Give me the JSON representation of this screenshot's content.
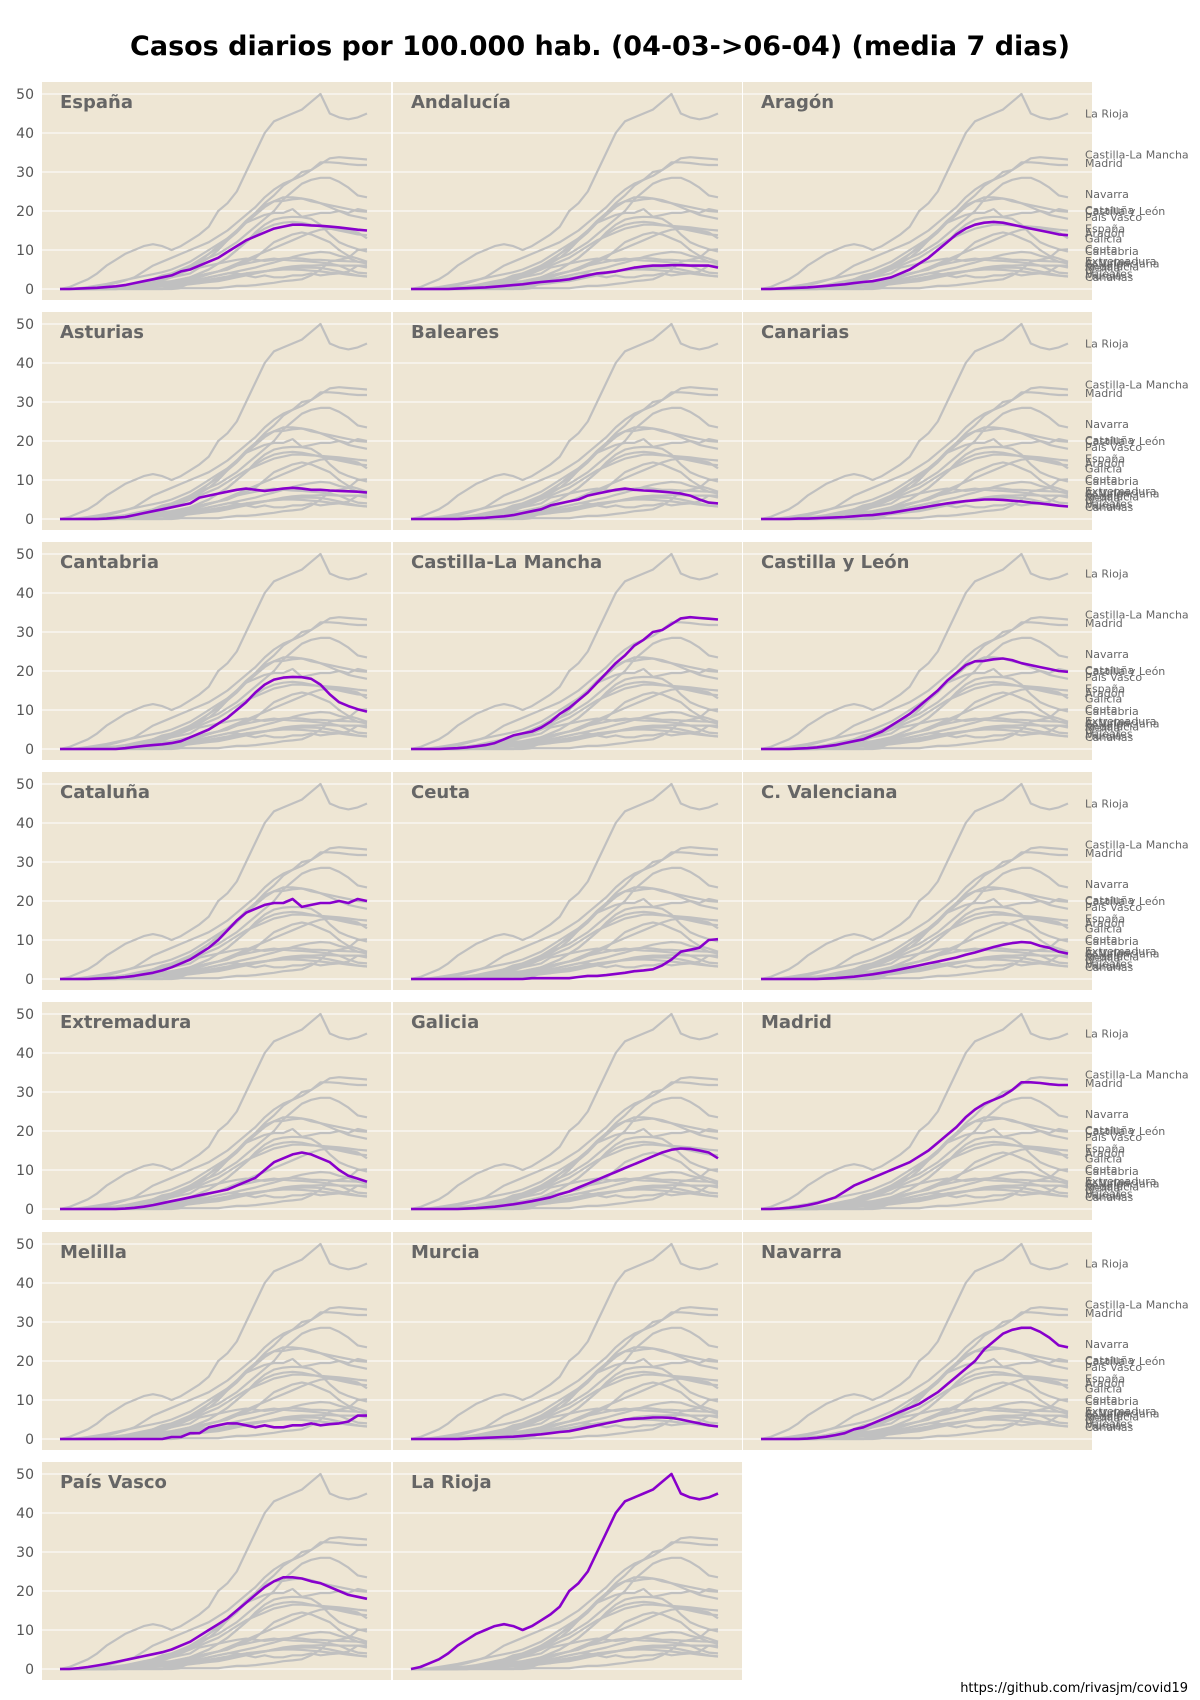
{
  "chart_data": {
    "type": "line",
    "title": "Casos diarios por 100.000 hab. (04-03->06-04) (media 7 dias)",
    "ylim": [
      0,
      50
    ],
    "yticks": [
      0,
      10,
      20,
      30,
      40,
      50
    ],
    "grid": true,
    "colors": {
      "highlight": "#8800cc",
      "background": "#eee6d4",
      "other": "#c0c0c0",
      "label": "#666666"
    },
    "n_points": 34,
    "series": [
      {
        "name": "España",
        "values": [
          0,
          0,
          0.1,
          0.2,
          0.3,
          0.5,
          0.7,
          1,
          1.5,
          2,
          2.5,
          3,
          3.5,
          4.5,
          5,
          6,
          7,
          8,
          9.5,
          11,
          12.5,
          13.5,
          14.5,
          15.5,
          16,
          16.5,
          16.5,
          16.3,
          16.2,
          16,
          15.8,
          15.5,
          15.2,
          15
        ]
      },
      {
        "name": "Andalucía",
        "values": [
          0,
          0,
          0,
          0,
          0,
          0.1,
          0.2,
          0.3,
          0.4,
          0.6,
          0.8,
          1,
          1.2,
          1.5,
          1.8,
          2,
          2.2,
          2.5,
          3,
          3.5,
          4,
          4.2,
          4.5,
          5,
          5.5,
          5.8,
          6,
          6,
          6.1,
          6.1,
          6,
          6,
          6,
          5.5
        ]
      },
      {
        "name": "Aragón",
        "values": [
          0,
          0,
          0.1,
          0.2,
          0.3,
          0.4,
          0.6,
          0.8,
          1,
          1.2,
          1.5,
          1.8,
          2,
          2.5,
          3,
          4,
          5,
          6.5,
          8,
          10,
          12,
          14,
          15.5,
          16.5,
          17,
          17.2,
          17,
          16.5,
          16,
          15.5,
          15,
          14.5,
          14,
          13.8
        ]
      },
      {
        "name": "Asturias",
        "values": [
          0,
          0,
          0,
          0,
          0,
          0.1,
          0.3,
          0.5,
          1,
          1.5,
          2,
          2.5,
          3,
          3.5,
          4,
          5.5,
          6,
          6.5,
          7,
          7.5,
          7.8,
          7.5,
          7.2,
          7.5,
          7.8,
          8,
          7.8,
          7.5,
          7.5,
          7.3,
          7.2,
          7.1,
          7,
          6.8
        ]
      },
      {
        "name": "Baleares",
        "values": [
          0,
          0,
          0,
          0,
          0,
          0,
          0.1,
          0.2,
          0.3,
          0.5,
          0.7,
          1,
          1.5,
          2,
          2.5,
          3.5,
          4,
          4.5,
          5,
          6,
          6.5,
          7,
          7.5,
          7.8,
          7.5,
          7.3,
          7.2,
          7,
          6.8,
          6.5,
          6,
          5,
          4.2,
          4
        ]
      },
      {
        "name": "Canarias",
        "values": [
          0,
          0,
          0,
          0,
          0.1,
          0.1,
          0.2,
          0.3,
          0.4,
          0.5,
          0.7,
          0.9,
          1,
          1.3,
          1.6,
          2,
          2.4,
          2.8,
          3.2,
          3.6,
          4,
          4.3,
          4.6,
          4.8,
          5,
          5,
          4.9,
          4.7,
          4.5,
          4.2,
          4,
          3.7,
          3.4,
          3.2
        ]
      },
      {
        "name": "Cantabria",
        "values": [
          0,
          0,
          0,
          0,
          0,
          0,
          0,
          0.2,
          0.5,
          0.8,
          1,
          1.2,
          1.5,
          2,
          3,
          4,
          5,
          6.5,
          8,
          10,
          12,
          14.5,
          16.5,
          17.8,
          18.3,
          18.5,
          18.4,
          18,
          16.5,
          14,
          12,
          11,
          10.2,
          9.6
        ]
      },
      {
        "name": "Castilla-La Mancha",
        "values": [
          0,
          0,
          0,
          0,
          0.1,
          0.2,
          0.4,
          0.7,
          1,
          1.5,
          2.5,
          3.5,
          4,
          4.5,
          5.5,
          7,
          9,
          10.5,
          12.5,
          14.5,
          17,
          19.5,
          22,
          24,
          26.5,
          28,
          30,
          30.5,
          32,
          33.5,
          33.8,
          33.6,
          33.4,
          33.2
        ]
      },
      {
        "name": "Castilla y León",
        "values": [
          0,
          0,
          0,
          0,
          0.1,
          0.2,
          0.4,
          0.7,
          1,
          1.5,
          2,
          2.5,
          3.5,
          4.5,
          6,
          7.5,
          9,
          11,
          13,
          15,
          17.5,
          19.5,
          21.5,
          22.5,
          22.6,
          23,
          23.2,
          22.8,
          22,
          21.5,
          21,
          20.5,
          20,
          19.8
        ]
      },
      {
        "name": "Cataluña",
        "values": [
          0,
          0,
          0,
          0,
          0.1,
          0.2,
          0.3,
          0.5,
          0.8,
          1.2,
          1.6,
          2.2,
          3,
          4,
          5,
          6.5,
          8,
          10,
          12.5,
          15,
          17,
          18,
          19,
          19.5,
          19.5,
          20.5,
          18.5,
          19,
          19.5,
          19.5,
          20,
          19.5,
          20.5,
          20
        ]
      },
      {
        "name": "Ceuta",
        "values": [
          0,
          0,
          0,
          0,
          0,
          0,
          0,
          0,
          0,
          0,
          0,
          0,
          0,
          0.2,
          0.2,
          0.2,
          0.2,
          0.2,
          0.5,
          0.8,
          0.8,
          1,
          1.3,
          1.6,
          2,
          2.2,
          2.5,
          3.5,
          5,
          7,
          7.5,
          8,
          10,
          10.2
        ]
      },
      {
        "name": "C. Valenciana",
        "values": [
          0,
          0,
          0,
          0,
          0,
          0,
          0,
          0.1,
          0.2,
          0.4,
          0.6,
          0.9,
          1.2,
          1.6,
          2,
          2.5,
          3,
          3.5,
          4,
          4.5,
          5,
          5.5,
          6.2,
          6.8,
          7.5,
          8.2,
          8.8,
          9.2,
          9.5,
          9.3,
          8.5,
          8,
          7,
          6.5
        ]
      },
      {
        "name": "Extremadura",
        "values": [
          0,
          0,
          0,
          0,
          0,
          0,
          0,
          0.1,
          0.3,
          0.6,
          1,
          1.5,
          2,
          2.5,
          3,
          3.5,
          4,
          4.5,
          5,
          6,
          7,
          8,
          10,
          12,
          13,
          14,
          14.5,
          14,
          13,
          12,
          10,
          8.5,
          7.8,
          7
        ]
      },
      {
        "name": "Galicia",
        "values": [
          0,
          0,
          0,
          0,
          0,
          0,
          0.1,
          0.2,
          0.4,
          0.6,
          0.9,
          1.2,
          1.6,
          2,
          2.5,
          3,
          3.8,
          4.5,
          5.5,
          6.5,
          7.5,
          8.5,
          9.5,
          10.5,
          11.5,
          12.5,
          13.5,
          14.5,
          15.2,
          15.5,
          15.4,
          15,
          14.5,
          13
        ]
      },
      {
        "name": "Madrid",
        "values": [
          0,
          0,
          0.1,
          0.3,
          0.6,
          1,
          1.5,
          2.2,
          3,
          4.5,
          6,
          7,
          8,
          9,
          10,
          11,
          12,
          13.5,
          15,
          17,
          19,
          21,
          23.5,
          25.5,
          27,
          28,
          29,
          30.5,
          32.5,
          32.5,
          32.3,
          32,
          31.8,
          31.8
        ]
      },
      {
        "name": "Melilla",
        "values": [
          0,
          0,
          0,
          0,
          0,
          0,
          0,
          0,
          0,
          0,
          0,
          0,
          0.5,
          0.5,
          1.5,
          1.5,
          3,
          3.5,
          4,
          4,
          3.5,
          3,
          3.5,
          3,
          3,
          3.5,
          3.5,
          4,
          3.5,
          3.8,
          4,
          4.5,
          6,
          6
        ]
      },
      {
        "name": "Murcia",
        "values": [
          0,
          0,
          0,
          0,
          0,
          0,
          0.1,
          0.2,
          0.3,
          0.4,
          0.5,
          0.6,
          0.8,
          1,
          1.2,
          1.5,
          1.8,
          2,
          2.5,
          3,
          3.5,
          4,
          4.5,
          5,
          5.2,
          5.3,
          5.5,
          5.5,
          5.4,
          5,
          4.5,
          4,
          3.5,
          3.2
        ]
      },
      {
        "name": "Navarra",
        "values": [
          0,
          0,
          0,
          0,
          0,
          0.1,
          0.3,
          0.6,
          1,
          1.5,
          2.5,
          3,
          4,
          5,
          6,
          7,
          8,
          9,
          10.5,
          12,
          14,
          16,
          18,
          20,
          23,
          25,
          27,
          28,
          28.5,
          28.5,
          27.5,
          26,
          24,
          23.5
        ]
      },
      {
        "name": "País Vasco",
        "values": [
          0,
          0,
          0.2,
          0.5,
          0.9,
          1.3,
          1.8,
          2.3,
          2.8,
          3.3,
          3.8,
          4.3,
          5,
          6,
          7,
          8.5,
          10,
          11.5,
          13,
          15,
          17,
          19,
          21,
          22.5,
          23.5,
          23.5,
          23.2,
          22.5,
          22,
          21,
          20,
          19,
          18.5,
          18
        ]
      },
      {
        "name": "La Rioja",
        "values": [
          0,
          0.5,
          1.5,
          2.5,
          4,
          6,
          7.5,
          9,
          10,
          11,
          11.5,
          11,
          10,
          11,
          12.5,
          14,
          16,
          20,
          22,
          25,
          30,
          35,
          40,
          43,
          44,
          45,
          46,
          48,
          50,
          45,
          44,
          43.5,
          44,
          45
        ]
      }
    ],
    "side_labels": [
      {
        "text": "La Rioja",
        "y": 45
      },
      {
        "text": "Castilla-La Mancha",
        "y": 34.5
      },
      {
        "text": "Madrid",
        "y": 32.3
      },
      {
        "text": "Navarra",
        "y": 24.3
      },
      {
        "text": "Cataluña",
        "y": 20.3
      },
      {
        "text": "Castilla y León",
        "y": 20
      },
      {
        "text": "País Vasco",
        "y": 18.5
      },
      {
        "text": "España",
        "y": 15.5
      },
      {
        "text": "Aragón",
        "y": 14.3
      },
      {
        "text": "Galicia",
        "y": 13
      },
      {
        "text": "Ceuta",
        "y": 10.3
      },
      {
        "text": "Cantabria",
        "y": 9.7
      },
      {
        "text": "Extremadura",
        "y": 7.2
      },
      {
        "text": "Asturias",
        "y": 6.8
      },
      {
        "text": "C. Valenciana",
        "y": 6.5
      },
      {
        "text": "Andalucía",
        "y": 5.8
      },
      {
        "text": "Melilla",
        "y": 5.5
      },
      {
        "text": "Baleares",
        "y": 4
      },
      {
        "text": "Murcia",
        "y": 3.5
      },
      {
        "text": "Canarias",
        "y": 3.1
      }
    ],
    "footer": "https://github.com/rivasjm/covid19"
  }
}
